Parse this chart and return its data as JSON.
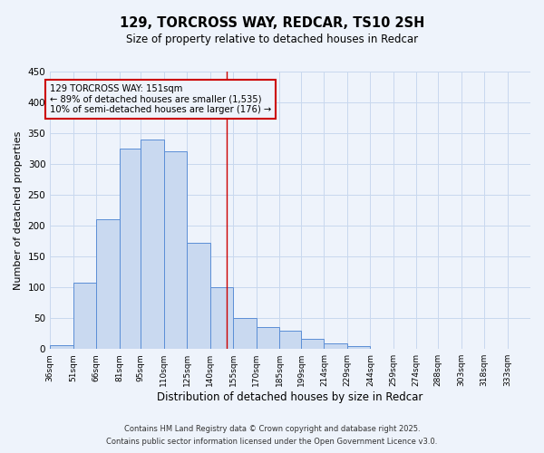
{
  "title": "129, TORCROSS WAY, REDCAR, TS10 2SH",
  "subtitle": "Size of property relative to detached houses in Redcar",
  "xlabel": "Distribution of detached houses by size in Redcar",
  "ylabel": "Number of detached properties",
  "bar_left_edges": [
    36,
    51,
    66,
    81,
    95,
    110,
    125,
    140,
    155,
    170,
    185,
    199,
    214,
    229,
    244,
    259,
    274,
    288,
    303,
    318
  ],
  "bar_widths": [
    15,
    15,
    15,
    14,
    15,
    15,
    15,
    15,
    15,
    15,
    14,
    15,
    15,
    15,
    15,
    15,
    14,
    15,
    15,
    15
  ],
  "bar_heights": [
    6,
    107,
    211,
    325,
    340,
    321,
    172,
    100,
    50,
    36,
    29,
    17,
    9,
    4,
    0,
    0,
    0,
    0,
    0,
    0
  ],
  "tick_labels": [
    "36sqm",
    "51sqm",
    "66sqm",
    "81sqm",
    "95sqm",
    "110sqm",
    "125sqm",
    "140sqm",
    "155sqm",
    "170sqm",
    "185sqm",
    "199sqm",
    "214sqm",
    "229sqm",
    "244sqm",
    "259sqm",
    "274sqm",
    "288sqm",
    "303sqm",
    "318sqm",
    "333sqm"
  ],
  "tick_positions": [
    36,
    51,
    66,
    81,
    95,
    110,
    125,
    140,
    155,
    170,
    185,
    199,
    214,
    229,
    244,
    259,
    274,
    288,
    303,
    318,
    333
  ],
  "bar_color": "#c9d9f0",
  "bar_edge_color": "#5b8ed6",
  "vline_x": 151,
  "vline_color": "#cc0000",
  "annotation_line1": "129 TORCROSS WAY: 151sqm",
  "annotation_line2": "← 89% of detached houses are smaller (1,535)",
  "annotation_line3": "10% of semi-detached houses are larger (176) →",
  "annotation_box_color": "#cc0000",
  "grid_color": "#c8d8ee",
  "background_color": "#eef3fb",
  "ylim": [
    0,
    450
  ],
  "yticks": [
    0,
    50,
    100,
    150,
    200,
    250,
    300,
    350,
    400,
    450
  ],
  "footer1": "Contains HM Land Registry data © Crown copyright and database right 2025.",
  "footer2": "Contains public sector information licensed under the Open Government Licence v3.0."
}
